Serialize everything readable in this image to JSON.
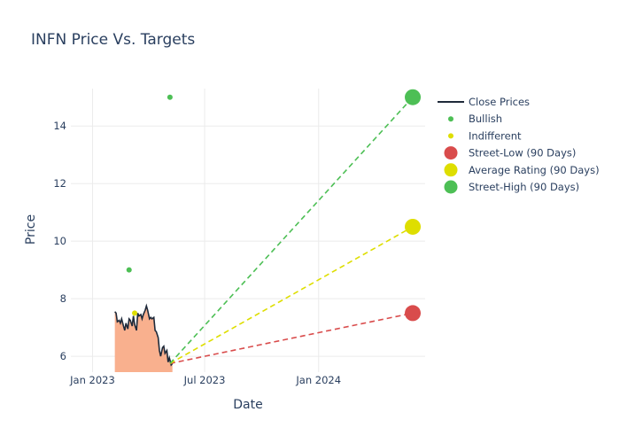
{
  "chart_data": {
    "type": "line",
    "title": "INFN Price Vs. Targets",
    "xlabel": "Date",
    "ylabel": "Price",
    "x_ticks": [
      "Jan 2023",
      "Jul 2023",
      "Jan 2024"
    ],
    "y_ticks": [
      6,
      8,
      10,
      12,
      14
    ],
    "xlim": [
      "2022-11-27",
      "2024-06-21"
    ],
    "ylim": [
      5.45,
      15.3
    ],
    "grid": true,
    "legend_position": "right",
    "close_prices": {
      "name": "Close Prices",
      "color": "#1f2a3a",
      "fill_color": "#f9b08e",
      "dates": [
        "2023-02-06",
        "2023-02-08",
        "2023-02-10",
        "2023-02-13",
        "2023-02-15",
        "2023-02-17",
        "2023-02-20",
        "2023-02-22",
        "2023-02-24",
        "2023-02-27",
        "2023-03-01",
        "2023-03-03",
        "2023-03-06",
        "2023-03-08",
        "2023-03-10",
        "2023-03-13",
        "2023-03-15",
        "2023-03-17",
        "2023-03-20",
        "2023-03-22",
        "2023-03-24",
        "2023-03-27",
        "2023-03-29",
        "2023-03-31",
        "2023-04-03",
        "2023-04-05",
        "2023-04-07",
        "2023-04-10",
        "2023-04-12",
        "2023-04-14",
        "2023-04-17",
        "2023-04-19",
        "2023-04-21",
        "2023-04-24",
        "2023-04-26",
        "2023-04-28",
        "2023-05-01",
        "2023-05-03",
        "2023-05-05",
        "2023-05-08",
        "2023-05-10"
      ],
      "values": [
        7.55,
        7.5,
        7.2,
        7.25,
        7.15,
        7.3,
        7.05,
        6.9,
        7.15,
        6.95,
        7.3,
        7.25,
        7.05,
        7.4,
        7.1,
        6.9,
        7.5,
        7.4,
        7.45,
        7.3,
        7.45,
        7.6,
        7.75,
        7.6,
        7.3,
        7.35,
        7.3,
        7.35,
        6.9,
        6.85,
        6.65,
        6.2,
        6.0,
        6.3,
        6.35,
        6.1,
        6.2,
        5.8,
        5.95,
        5.7,
        5.75
      ]
    },
    "bullish": {
      "name": "Bullish",
      "color": "#4dbf55",
      "points": [
        {
          "date": "2023-03-01",
          "value": 9.0
        },
        {
          "date": "2023-05-06",
          "value": 15.0
        }
      ]
    },
    "indifferent": {
      "name": "Indifferent",
      "color": "#dede00",
      "points": [
        {
          "date": "2023-03-10",
          "value": 7.5
        }
      ]
    },
    "targets": {
      "start_date": "2023-05-06",
      "start_value": 5.75,
      "end_date": "2024-06-01",
      "series": [
        {
          "name": "Street-Low (90 Days)",
          "value": 7.5,
          "color": "#d94c4c"
        },
        {
          "name": "Average Rating (90 Days)",
          "value": 10.5,
          "color": "#dede00"
        },
        {
          "name": "Street-High (90 Days)",
          "value": 15.0,
          "color": "#4dbf55"
        }
      ]
    }
  }
}
